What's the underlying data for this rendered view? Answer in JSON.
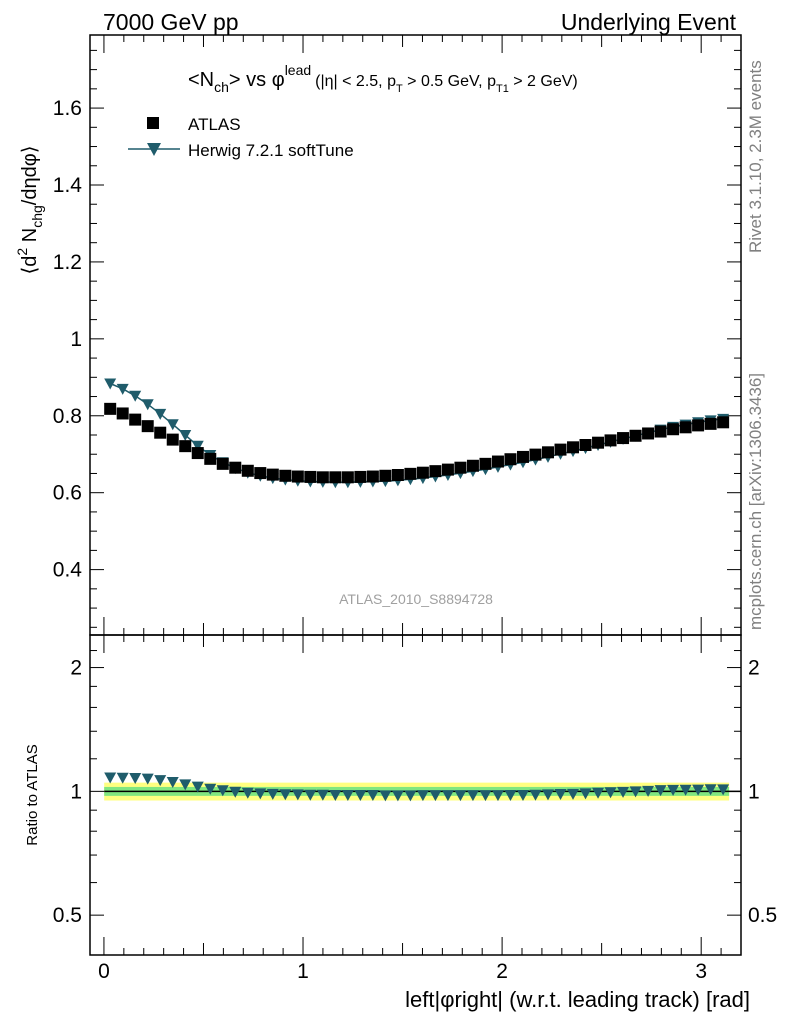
{
  "header": {
    "left_title": "7000 GeV pp",
    "right_title": "Underlying Event"
  },
  "side_labels": {
    "rivet": "Rivet 3.1.10,  2.3M events",
    "mcplots": "mcplots.cern.ch [arXiv:1306.3436]"
  },
  "chart_data": [
    {
      "type": "scatter",
      "panel": "main",
      "title": "<N_ch> vs φ^lead (|η| < 2.5, p_T > 0.5 GeV, p_T1 > 2 GeV)",
      "title_parts": {
        "n_ch_open": "<N",
        "n_ch_sub": "ch",
        "n_ch_close": "> vs ",
        "phi": "φ",
        "phi_sup": "lead",
        "cuts_1": "(|η| < 2.5, p",
        "cuts_sub_1": "T",
        "cuts_2": " > 0.5 GeV, p",
        "cuts_sub_2": "T1",
        "cuts_3": " > 2 GeV)"
      },
      "ylabel": "⟨d² N_chg/dηdφ⟩",
      "ylabel_parts": {
        "a": "⟨d",
        "b": "2",
        "c": " N",
        "d": "chg",
        "e": "/dηdφ⟩"
      },
      "watermark": "ATLAS_2010_S8894728",
      "xlim": [
        -0.07,
        3.2
      ],
      "ylim": [
        0.23,
        1.79
      ],
      "yticks": [
        0.4,
        0.6,
        0.8,
        1,
        1.2,
        1.4,
        1.6
      ],
      "ytick_labels": [
        "0.4",
        "0.6",
        "0.8",
        "1",
        "1.2",
        "1.4",
        "1.6"
      ],
      "legend": "top-left",
      "x": [
        0.0314,
        0.0942,
        0.157,
        0.2199,
        0.2827,
        0.3456,
        0.4084,
        0.4712,
        0.5341,
        0.5969,
        0.6597,
        0.7226,
        0.7854,
        0.8482,
        0.9111,
        0.9739,
        1.0367,
        1.0996,
        1.1624,
        1.2252,
        1.2881,
        1.3509,
        1.4137,
        1.4765,
        1.5394,
        1.6022,
        1.665,
        1.7279,
        1.7907,
        1.8535,
        1.9164,
        1.9792,
        2.042,
        2.1049,
        2.1677,
        2.2305,
        2.2934,
        2.3562,
        2.419,
        2.4819,
        2.5447,
        2.6075,
        2.6704,
        2.7332,
        2.796,
        2.8588,
        2.9217,
        2.9845,
        3.0473,
        3.1102
      ],
      "series": [
        {
          "name": "ATLAS",
          "color": "#000000",
          "marker": "square",
          "values": [
            0.818,
            0.806,
            0.79,
            0.773,
            0.756,
            0.738,
            0.721,
            0.703,
            0.688,
            0.675,
            0.665,
            0.657,
            0.651,
            0.647,
            0.644,
            0.642,
            0.641,
            0.64,
            0.64,
            0.64,
            0.641,
            0.642,
            0.644,
            0.646,
            0.649,
            0.652,
            0.656,
            0.66,
            0.665,
            0.67,
            0.675,
            0.681,
            0.687,
            0.693,
            0.699,
            0.705,
            0.712,
            0.718,
            0.724,
            0.73,
            0.736,
            0.742,
            0.748,
            0.754,
            0.759,
            0.765,
            0.77,
            0.775,
            0.779,
            0.783
          ]
        },
        {
          "name": "Herwig 7.2.1 softTune",
          "color": "#1f5c6b",
          "marker": "triangle-down",
          "values": [
            0.884,
            0.87,
            0.852,
            0.83,
            0.805,
            0.778,
            0.75,
            0.722,
            0.698,
            0.679,
            0.664,
            0.652,
            0.644,
            0.638,
            0.634,
            0.631,
            0.629,
            0.628,
            0.627,
            0.627,
            0.628,
            0.629,
            0.63,
            0.632,
            0.635,
            0.638,
            0.642,
            0.646,
            0.651,
            0.656,
            0.661,
            0.667,
            0.673,
            0.679,
            0.686,
            0.693,
            0.701,
            0.708,
            0.716,
            0.724,
            0.732,
            0.74,
            0.748,
            0.756,
            0.764,
            0.771,
            0.777,
            0.783,
            0.788,
            0.792
          ]
        }
      ]
    },
    {
      "type": "scatter",
      "panel": "ratio",
      "ylabel": "Ratio to ATLAS",
      "xlabel": "left|φright| (w.r.t. leading track) [rad]",
      "xlim": [
        -0.07,
        3.2
      ],
      "ylim": [
        0.4,
        2.4
      ],
      "ylog": true,
      "xticks": [
        0,
        1,
        2,
        3
      ],
      "xtick_labels": [
        "0",
        "1",
        "2",
        "3"
      ],
      "yticks": [
        0.5,
        1,
        2
      ],
      "ytick_labels": [
        "0.5",
        "1",
        "2"
      ],
      "bands": [
        {
          "name": "outer",
          "color": "#ffff80",
          "range": [
            0.95,
            1.05
          ]
        },
        {
          "name": "inner",
          "color": "#80e680",
          "range": [
            0.975,
            1.025
          ]
        }
      ],
      "reference_line": 1,
      "series": [
        {
          "name": "Herwig 7.2.1 softTune",
          "color": "#1f5c6b",
          "marker": "triangle-down",
          "values": [
            1.081,
            1.079,
            1.078,
            1.074,
            1.065,
            1.054,
            1.04,
            1.027,
            1.015,
            1.006,
            0.998,
            0.992,
            0.989,
            0.986,
            0.984,
            0.983,
            0.981,
            0.981,
            0.98,
            0.98,
            0.98,
            0.98,
            0.978,
            0.978,
            0.978,
            0.979,
            0.979,
            0.979,
            0.979,
            0.979,
            0.979,
            0.979,
            0.98,
            0.98,
            0.981,
            0.983,
            0.985,
            0.986,
            0.989,
            0.992,
            0.995,
            0.997,
            1.0,
            1.003,
            1.007,
            1.008,
            1.009,
            1.01,
            1.012,
            1.011
          ]
        }
      ]
    }
  ]
}
